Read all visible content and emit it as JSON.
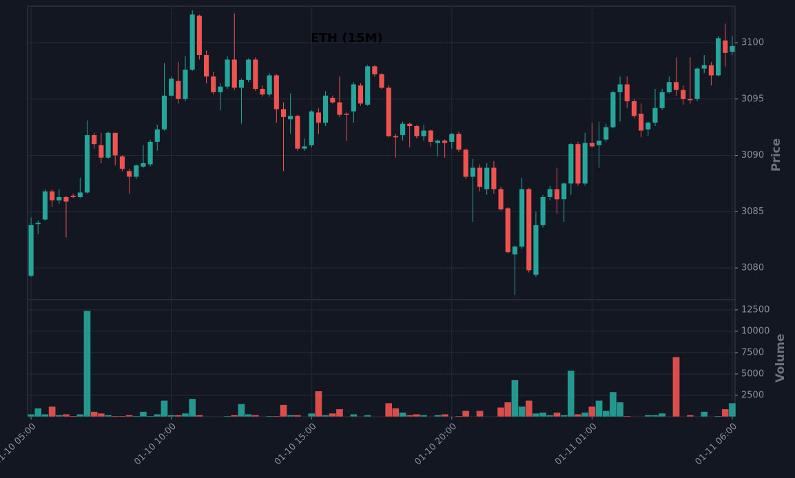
{
  "chart_data": {
    "type": "candlestick",
    "title": "ETH (15M)",
    "ylabel": "Price",
    "volume_label": "Volume",
    "up_color": "#26a69a",
    "down_color": "#ef5350",
    "grid": true,
    "xlim": [
      -0.5,
      100.4
    ],
    "xticks": [
      {
        "value": 0,
        "label": "01-10 05:00"
      },
      {
        "value": 20,
        "label": "01-10 10:00"
      },
      {
        "value": 40,
        "label": "01-10 15:00"
      },
      {
        "value": 60,
        "label": "01-10 20:00"
      },
      {
        "value": 80,
        "label": "01-11 01:00"
      },
      {
        "value": 100,
        "label": "01-11 06:00"
      }
    ],
    "ylim": [
      3077.19,
      3103.24
    ],
    "yticks": [
      3080,
      3085,
      3090,
      3095,
      3100
    ],
    "volume_ylim": [
      0,
      13700
    ],
    "volume_yticks": [
      2500,
      5000,
      7500,
      10000,
      12500
    ],
    "open": [
      3079.3,
      3083.9,
      3084.3,
      3086.8,
      3086.0,
      3086.3,
      3086.4,
      3086.3,
      3086.7,
      3091.8,
      3090.9,
      3089.8,
      3092.0,
      3089.9,
      3088.6,
      3088.1,
      3089.0,
      3089.2,
      3091.2,
      3092.3,
      3095.3,
      3096.6,
      3095.0,
      3097.6,
      3102.4,
      3098.9,
      3097.0,
      3095.6,
      3096.1,
      3098.5,
      3096.0,
      3096.7,
      3098.5,
      3095.9,
      3095.4,
      3097.1,
      3094.1,
      3093.2,
      3093.5,
      3090.6,
      3090.9,
      3093.8,
      3092.9,
      3095.1,
      3094.7,
      3093.7,
      3093.9,
      3096.2,
      3094.5,
      3097.9,
      3097.2,
      3096.0,
      3091.7,
      3091.8,
      3092.8,
      3092.6,
      3091.7,
      3092.2,
      3091.1,
      3091.3,
      3091.2,
      3091.9,
      3090.5,
      3088.1,
      3088.9,
      3087.0,
      3088.9,
      3087.0,
      3085.3,
      3081.2,
      3081.9,
      3087.0,
      3079.4,
      3083.8,
      3086.3,
      3087.0,
      3086.1,
      3087.5,
      3091.0,
      3087.5,
      3091.1,
      3090.9,
      3091.4,
      3092.5,
      3095.6,
      3096.3,
      3094.8,
      3093.7,
      3092.3,
      3092.9,
      3094.2,
      3095.6,
      3096.5,
      3095.8,
      3095.0,
      3095.0,
      3097.7,
      3098.0,
      3097.1,
      3100.2,
      3099.2
    ],
    "high": [
      3084.5,
      3084.2,
      3087.0,
      3087.0,
      3087.0,
      3086.4,
      3086.6,
      3088.0,
      3093.1,
      3092.0,
      3092.0,
      3092.1,
      3092.0,
      3090.0,
      3088.8,
      3089.2,
      3090.9,
      3091.4,
      3092.7,
      3098.2,
      3097.0,
      3098.3,
      3098.8,
      3102.9,
      3102.5,
      3099.3,
      3097.4,
      3096.4,
      3098.8,
      3102.6,
      3096.8,
      3098.6,
      3098.7,
      3096.2,
      3097.3,
      3097.2,
      3094.7,
      3095.5,
      3093.6,
      3091.5,
      3094.0,
      3094.2,
      3095.7,
      3095.3,
      3097.0,
      3093.8,
      3096.5,
      3096.4,
      3098.0,
      3098.0,
      3097.3,
      3096.2,
      3091.9,
      3093.0,
      3092.9,
      3092.7,
      3092.7,
      3092.3,
      3091.4,
      3091.4,
      3092.0,
      3092.1,
      3090.6,
      3089.7,
      3089.2,
      3089.3,
      3089.5,
      3087.2,
      3085.4,
      3082.0,
      3088.0,
      3087.1,
      3085.0,
      3086.5,
      3087.3,
      3088.9,
      3087.6,
      3091.1,
      3091.2,
      3092.0,
      3092.9,
      3093.0,
      3092.8,
      3095.7,
      3097.0,
      3097.0,
      3095.0,
      3094.6,
      3093.0,
      3095.9,
      3095.9,
      3097.0,
      3098.7,
      3096.2,
      3098.7,
      3097.8,
      3098.9,
      3098.3,
      3100.6,
      3101.7,
      3100.6
    ],
    "low": [
      3079.2,
      3083.0,
      3084.2,
      3085.4,
      3085.7,
      3082.7,
      3086.2,
      3086.2,
      3086.6,
      3090.6,
      3089.3,
      3089.7,
      3089.1,
      3088.6,
      3086.6,
      3087.9,
      3088.9,
      3089.0,
      3090.4,
      3092.2,
      3095.2,
      3094.6,
      3094.8,
      3097.5,
      3098.5,
      3096.4,
      3095.4,
      3094.0,
      3095.9,
      3095.8,
      3092.8,
      3096.5,
      3095.7,
      3095.2,
      3095.2,
      3092.9,
      3088.6,
      3091.9,
      3090.4,
      3090.4,
      3090.7,
      3091.9,
      3092.6,
      3094.6,
      3093.4,
      3091.3,
      3092.9,
      3094.4,
      3094.4,
      3097.0,
      3095.9,
      3091.6,
      3089.8,
      3091.3,
      3090.7,
      3091.5,
      3091.3,
      3090.8,
      3089.9,
      3089.8,
      3090.6,
      3090.3,
      3087.9,
      3084.1,
      3086.8,
      3086.5,
      3086.6,
      3085.1,
      3081.3,
      3077.6,
      3081.7,
      3079.6,
      3079.2,
      3083.6,
      3086.0,
      3084.8,
      3084.1,
      3086.5,
      3087.3,
      3087.3,
      3090.7,
      3088.9,
      3091.2,
      3092.4,
      3093.0,
      3094.2,
      3093.3,
      3091.6,
      3091.7,
      3092.6,
      3094.0,
      3095.5,
      3095.3,
      3094.5,
      3094.6,
      3094.8,
      3097.3,
      3096.2,
      3097.0,
      3097.9,
      3098.9
    ],
    "close": [
      3083.8,
      3084.0,
      3086.8,
      3086.0,
      3086.3,
      3085.9,
      3086.3,
      3086.7,
      3091.8,
      3091.0,
      3089.8,
      3092.0,
      3090.0,
      3088.8,
      3088.1,
      3089.1,
      3089.3,
      3091.2,
      3092.3,
      3095.3,
      3096.8,
      3095.0,
      3097.6,
      3102.5,
      3098.9,
      3097.0,
      3095.6,
      3096.1,
      3098.5,
      3096.0,
      3096.7,
      3098.5,
      3095.9,
      3095.4,
      3097.1,
      3094.1,
      3093.4,
      3093.5,
      3090.6,
      3090.8,
      3093.9,
      3092.9,
      3095.3,
      3094.7,
      3093.6,
      3093.6,
      3096.3,
      3094.6,
      3097.9,
      3097.2,
      3096.0,
      3091.7,
      3091.6,
      3092.8,
      3092.6,
      3091.7,
      3092.2,
      3091.2,
      3091.3,
      3091.1,
      3091.9,
      3090.5,
      3088.1,
      3088.9,
      3087.2,
      3088.9,
      3087.0,
      3085.2,
      3081.4,
      3081.9,
      3087.0,
      3079.8,
      3083.8,
      3086.3,
      3087.0,
      3086.1,
      3087.5,
      3091.0,
      3087.5,
      3091.1,
      3090.8,
      3091.3,
      3092.5,
      3095.6,
      3096.3,
      3094.8,
      3093.5,
      3092.2,
      3092.9,
      3094.2,
      3095.6,
      3096.5,
      3095.8,
      3095.0,
      3094.9,
      3097.7,
      3098.0,
      3097.1,
      3100.4,
      3099.1,
      3099.7
    ],
    "volume": [
      300,
      1000,
      300,
      1200,
      200,
      300,
      100,
      300,
      12400,
      600,
      400,
      200,
      100,
      100,
      200,
      100,
      600,
      100,
      300,
      1900,
      200,
      200,
      400,
      2100,
      200,
      50,
      50,
      50,
      100,
      200,
      1500,
      300,
      200,
      50,
      100,
      100,
      1400,
      200,
      200,
      50,
      400,
      3000,
      200,
      400,
      900,
      50,
      300,
      50,
      200,
      50,
      50,
      1600,
      1000,
      500,
      200,
      300,
      200,
      50,
      200,
      300,
      50,
      100,
      700,
      50,
      700,
      50,
      50,
      1100,
      1700,
      4300,
      1200,
      1900,
      400,
      500,
      200,
      500,
      200,
      5400,
      300,
      500,
      1200,
      1900,
      700,
      2900,
      1700,
      100,
      50,
      50,
      200,
      200,
      400,
      50,
      7000,
      50,
      200,
      50,
      600,
      50,
      100,
      900,
      1600
    ]
  }
}
